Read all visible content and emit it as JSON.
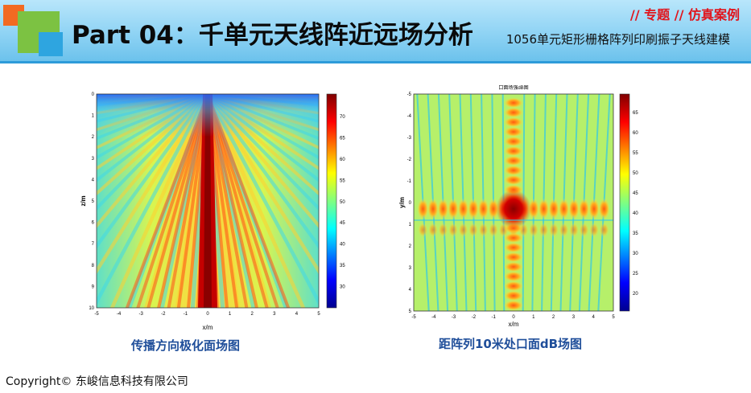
{
  "header": {
    "title": "Part 04：千单元天线阵近远场分析",
    "topic": "// 专题 // 仿真案例",
    "subtitle": "1056单元矩形栅格阵列印刷振子天线建模",
    "colors": {
      "accent_red": "#e1141b",
      "band": "#8fd3f4",
      "caption_blue": "#1f4e9a"
    }
  },
  "figures": [
    {
      "caption": "传播方向极化面场图",
      "xlabel": "x/m",
      "ylabel": "z/m",
      "x_ticks": [
        "-5",
        "-4",
        "-3",
        "-2",
        "-1",
        "0",
        "1",
        "2",
        "3",
        "4",
        "5"
      ],
      "y_ticks": [
        "0",
        "1",
        "2",
        "3",
        "4",
        "5",
        "6",
        "7",
        "8",
        "9",
        "10"
      ],
      "colorbar_ticks": [
        "70",
        "65",
        "60",
        "55",
        "50",
        "45",
        "40",
        "35",
        "30"
      ]
    },
    {
      "caption": "距阵列10米处口面dB场图",
      "title": "口面场强dB图",
      "xlabel": "x/m",
      "ylabel": "y/m",
      "x_ticks": [
        "-5",
        "-4",
        "-3",
        "-2",
        "-1",
        "0",
        "1",
        "2",
        "3",
        "4",
        "5"
      ],
      "y_ticks": [
        "-5",
        "-4",
        "-3",
        "-2",
        "-1",
        "0",
        "1",
        "2",
        "3",
        "4",
        "5"
      ],
      "colorbar_ticks": [
        "65",
        "60",
        "55",
        "50",
        "45",
        "40",
        "35",
        "30",
        "25",
        "20"
      ]
    }
  ],
  "footer": {
    "copyright": "Copyright© 东峻信息科技有限公司"
  }
}
